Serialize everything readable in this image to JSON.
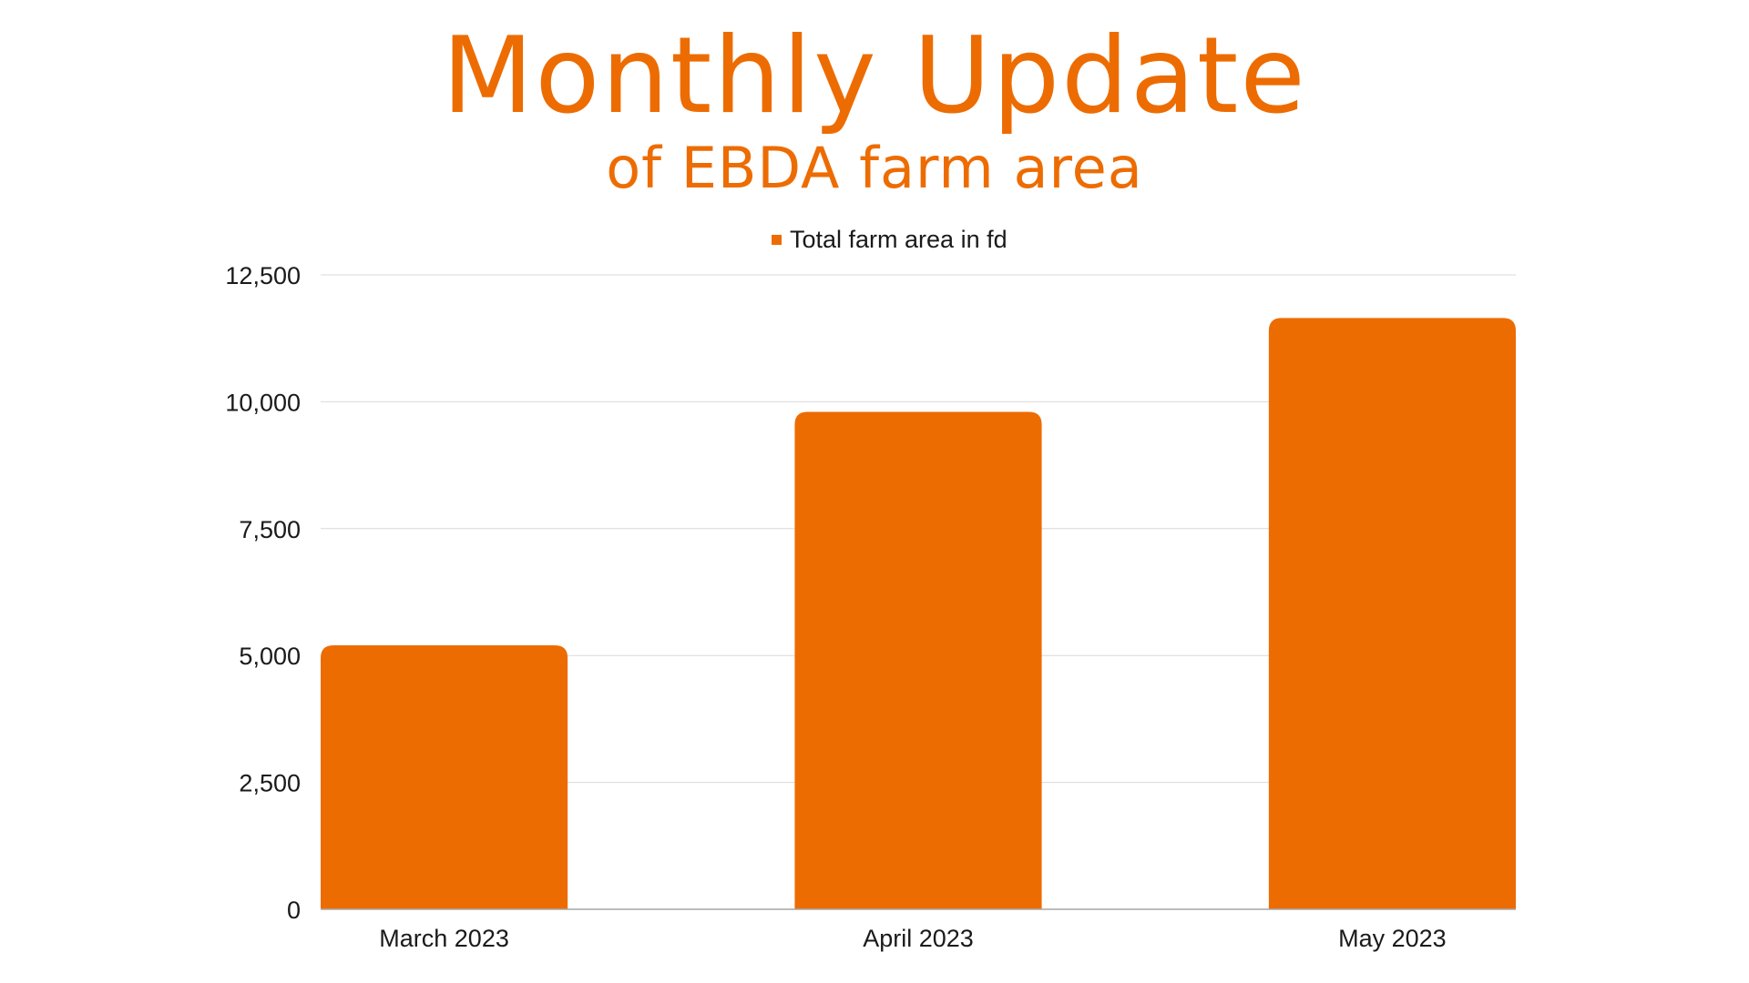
{
  "header": {
    "title": "Monthly Update",
    "subtitle": "of EBDA farm area"
  },
  "colors": {
    "accent": "#ED6C02",
    "gridline": "#D9D9D9",
    "baseline": "#A6A6A6",
    "text": "#1A1A1A"
  },
  "chart_data": {
    "type": "bar",
    "categories": [
      "March 2023",
      "April 2023",
      "May 2023"
    ],
    "series": [
      {
        "name": "Total farm area in fd",
        "values": [
          5200,
          9800,
          11650
        ]
      }
    ],
    "ylim": [
      0,
      12500
    ],
    "yticks": [
      0,
      2500,
      5000,
      7500,
      10000,
      12500
    ],
    "ytick_labels": [
      "0",
      "2,500",
      "5,000",
      "7,500",
      "10,000",
      "12,500"
    ],
    "legend_position": "top-center",
    "grid": true
  }
}
